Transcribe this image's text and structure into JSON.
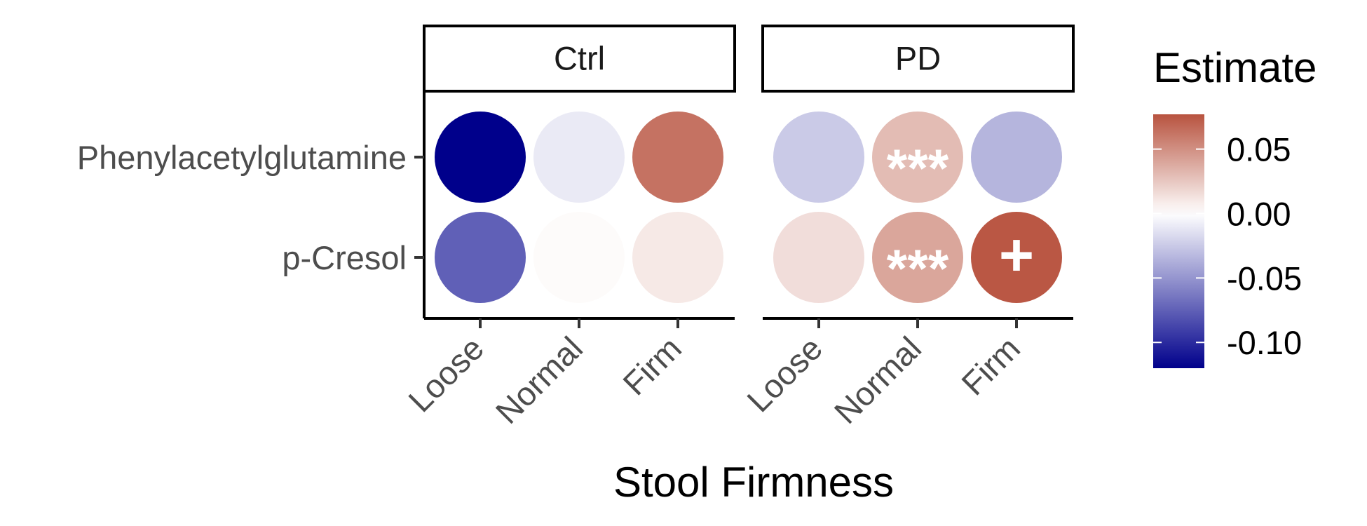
{
  "chart_data": {
    "type": "heatmap",
    "xlabel": "Stool Firmness",
    "panels": [
      "Ctrl",
      "PD"
    ],
    "rows": [
      "Phenylacetylglutamine",
      "p-Cresol"
    ],
    "columns": [
      "Loose",
      "Normal",
      "Firm"
    ],
    "cells": [
      {
        "panel": "Ctrl",
        "row": "Phenylacetylglutamine",
        "column": "Loose",
        "value": -0.12,
        "sig": ""
      },
      {
        "panel": "Ctrl",
        "row": "Phenylacetylglutamine",
        "column": "Normal",
        "value": -0.01,
        "sig": ""
      },
      {
        "panel": "Ctrl",
        "row": "Phenylacetylglutamine",
        "column": "Firm",
        "value": 0.063,
        "sig": ""
      },
      {
        "panel": "Ctrl",
        "row": "p-Cresol",
        "column": "Loose",
        "value": -0.075,
        "sig": ""
      },
      {
        "panel": "Ctrl",
        "row": "p-Cresol",
        "column": "Normal",
        "value": 0.002,
        "sig": ""
      },
      {
        "panel": "Ctrl",
        "row": "p-Cresol",
        "column": "Firm",
        "value": 0.01,
        "sig": ""
      },
      {
        "panel": "PD",
        "row": "Phenylacetylglutamine",
        "column": "Loose",
        "value": -0.025,
        "sig": ""
      },
      {
        "panel": "PD",
        "row": "Phenylacetylglutamine",
        "column": "Normal",
        "value": 0.03,
        "sig": "***"
      },
      {
        "panel": "PD",
        "row": "Phenylacetylglutamine",
        "column": "Firm",
        "value": -0.035,
        "sig": ""
      },
      {
        "panel": "PD",
        "row": "p-Cresol",
        "column": "Loose",
        "value": 0.015,
        "sig": ""
      },
      {
        "panel": "PD",
        "row": "p-Cresol",
        "column": "Normal",
        "value": 0.04,
        "sig": "***"
      },
      {
        "panel": "PD",
        "row": "p-Cresol",
        "column": "Firm",
        "value": 0.075,
        "sig": "+"
      }
    ],
    "legend": {
      "title": "Estimate",
      "ticks": [
        {
          "label": "0.05",
          "value": 0.05
        },
        {
          "label": "0.00",
          "value": 0.0
        },
        {
          "label": "-0.05",
          "value": -0.05
        },
        {
          "label": "-0.10",
          "value": -0.1
        }
      ],
      "range": [
        -0.12,
        0.077
      ],
      "placement": "right"
    },
    "colors": {
      "low": "#00008b",
      "mid": "#ffffff",
      "high": "#b8533f"
    }
  }
}
